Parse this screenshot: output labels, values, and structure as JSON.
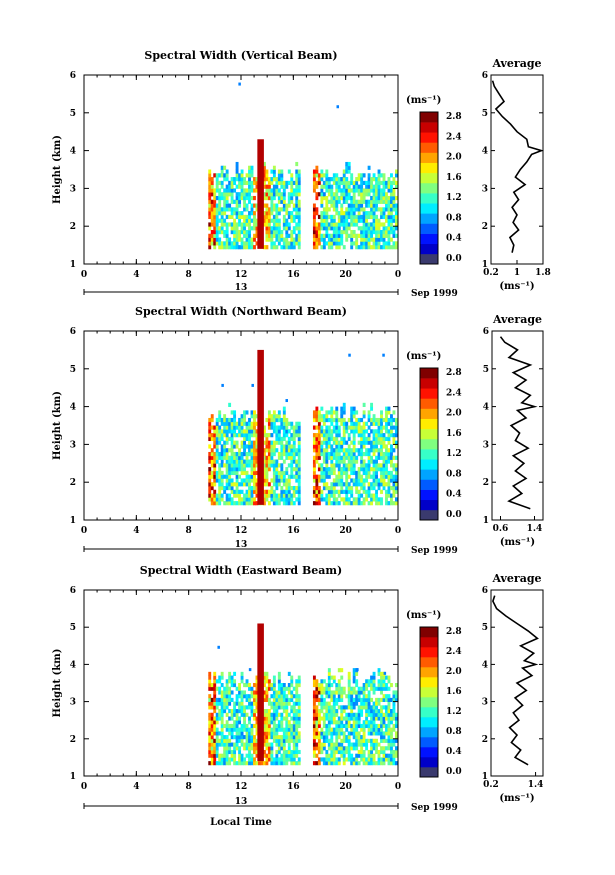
{
  "figure": {
    "date_label": "Sep 1999",
    "xlabel": "Local Time",
    "cbar_unit": "(ms⁻¹)",
    "avg_unit": "(ms⁻¹)"
  },
  "chart_data": [
    {
      "type": "heatmap",
      "title": "Spectral Width (Vertical Beam)",
      "xlabel": "",
      "ylabel": "Height (km)",
      "xlim": [
        0,
        24
      ],
      "ylim": [
        1,
        6
      ],
      "x_ticks": [
        "0",
        "4",
        "8",
        "12",
        "16",
        "20",
        "0"
      ],
      "y_ticks": [
        "1",
        "2",
        "3",
        "4",
        "5",
        "6"
      ],
      "date_axis": {
        "day": "13",
        "label": "Sep 1999"
      },
      "colorbar": {
        "unit": "(ms⁻¹)",
        "ticks": [
          "0.0",
          "0.4",
          "0.8",
          "1.2",
          "1.6",
          "2.0",
          "2.4",
          "2.8"
        ],
        "range": [
          0,
          3.0
        ]
      },
      "data_extent_hours": [
        [
          9.5,
          16.4
        ],
        [
          17.5,
          23.8
        ]
      ],
      "data_extent_km": [
        1.4,
        3.4
      ],
      "convective_core": {
        "hour": 13.5,
        "top_km": 4.3,
        "width_ms": 2.9
      },
      "scattered_points": [
        {
          "x": 11.8,
          "y": 5.8
        },
        {
          "x": 19.3,
          "y": 5.2
        }
      ],
      "average_profile": {
        "title": "Average",
        "xlabel": "(ms⁻¹)",
        "xlim": [
          0.2,
          1.8
        ],
        "x_ticks": [
          "0.2",
          "1",
          "1.8"
        ],
        "ylim": [
          1,
          6
        ],
        "y_ticks": [
          "1",
          "2",
          "3",
          "4",
          "5",
          "6"
        ],
        "height_km": [
          1.3,
          1.5,
          1.7,
          1.9,
          2.1,
          2.3,
          2.5,
          2.7,
          2.9,
          3.1,
          3.3,
          3.5,
          3.7,
          3.9,
          4.0,
          4.1,
          4.3,
          4.5,
          4.7,
          4.9,
          5.1,
          5.3,
          5.5,
          5.7,
          5.85
        ],
        "width_ms": [
          0.85,
          0.9,
          0.78,
          1.05,
          0.88,
          1.0,
          0.85,
          1.05,
          0.9,
          1.25,
          0.95,
          1.1,
          1.3,
          1.45,
          1.75,
          1.35,
          1.3,
          1.0,
          0.8,
          0.55,
          0.35,
          0.6,
          0.45,
          0.3,
          0.25
        ]
      }
    },
    {
      "type": "heatmap",
      "title": "Spectral Width (Northward Beam)",
      "xlabel": "",
      "ylabel": "Height (km)",
      "xlim": [
        0,
        24
      ],
      "ylim": [
        1,
        6
      ],
      "x_ticks": [
        "0",
        "4",
        "8",
        "12",
        "16",
        "20",
        "0"
      ],
      "y_ticks": [
        "1",
        "2",
        "3",
        "4",
        "5",
        "6"
      ],
      "date_axis": {
        "day": "13",
        "label": "Sep 1999"
      },
      "colorbar": {
        "unit": "(ms⁻¹)",
        "ticks": [
          "0.0",
          "0.4",
          "0.8",
          "1.2",
          "1.6",
          "2.0",
          "2.4",
          "2.8"
        ],
        "range": [
          0,
          3.0
        ]
      },
      "data_extent_hours": [
        [
          9.5,
          16.4
        ],
        [
          17.5,
          23.8
        ]
      ],
      "data_extent_km": [
        1.4,
        3.8
      ],
      "convective_core": {
        "hour": 13.5,
        "top_km": 5.5,
        "width_ms": 2.9
      },
      "scattered_points": [
        {
          "x": 20.2,
          "y": 5.4
        },
        {
          "x": 22.8,
          "y": 5.4
        },
        {
          "x": 10.5,
          "y": 4.6
        },
        {
          "x": 12.8,
          "y": 4.6
        },
        {
          "x": 15.4,
          "y": 4.2
        }
      ],
      "average_profile": {
        "title": "Average",
        "xlabel": "(ms⁻¹)",
        "xlim": [
          0.4,
          1.6
        ],
        "x_ticks": [
          "0.6",
          "1.4"
        ],
        "ylim": [
          1,
          6
        ],
        "y_ticks": [
          "1",
          "2",
          "3",
          "4",
          "5",
          "6"
        ],
        "height_km": [
          1.3,
          1.5,
          1.7,
          1.9,
          2.1,
          2.3,
          2.5,
          2.7,
          2.9,
          3.1,
          3.3,
          3.5,
          3.7,
          3.9,
          4.0,
          4.1,
          4.3,
          4.5,
          4.7,
          4.9,
          5.1,
          5.3,
          5.5,
          5.7,
          5.85
        ],
        "width_ms": [
          1.3,
          0.8,
          1.1,
          0.9,
          1.2,
          0.95,
          1.15,
          0.9,
          1.25,
          0.95,
          1.05,
          0.85,
          1.2,
          1.0,
          1.4,
          1.1,
          1.3,
          0.95,
          1.2,
          0.9,
          1.3,
          0.8,
          1.0,
          0.7,
          0.6
        ]
      }
    },
    {
      "type": "heatmap",
      "title": "Spectral Width (Eastward Beam)",
      "xlabel": "Local Time",
      "ylabel": "Height (km)",
      "xlim": [
        0,
        24
      ],
      "ylim": [
        1,
        6
      ],
      "x_ticks": [
        "0",
        "4",
        "8",
        "12",
        "16",
        "20",
        "0"
      ],
      "y_ticks": [
        "1",
        "2",
        "3",
        "4",
        "5",
        "6"
      ],
      "date_axis": {
        "day": "13",
        "label": "Sep 1999"
      },
      "colorbar": {
        "unit": "(ms⁻¹)",
        "ticks": [
          "0.0",
          "0.4",
          "0.8",
          "1.2",
          "1.6",
          "2.0",
          "2.4",
          "2.8"
        ],
        "range": [
          0,
          3.0
        ]
      },
      "data_extent_hours": [
        [
          9.5,
          16.4
        ],
        [
          17.5,
          23.8
        ]
      ],
      "data_extent_km": [
        1.3,
        3.6
      ],
      "convective_core": {
        "hour": 13.5,
        "top_km": 5.1,
        "width_ms": 2.9
      },
      "scattered_points": [
        {
          "x": 10.2,
          "y": 4.5
        },
        {
          "x": 20.8,
          "y": 3.9
        },
        {
          "x": 22.9,
          "y": 3.8
        },
        {
          "x": 12.6,
          "y": 3.9
        }
      ],
      "average_profile": {
        "title": "Average",
        "xlabel": "(ms⁻¹)",
        "xlim": [
          0.2,
          1.6
        ],
        "x_ticks": [
          "0.2",
          "1.4"
        ],
        "ylim": [
          1,
          6
        ],
        "y_ticks": [
          "1",
          "2",
          "3",
          "4",
          "5",
          "6"
        ],
        "height_km": [
          1.3,
          1.5,
          1.7,
          1.9,
          2.1,
          2.3,
          2.5,
          2.7,
          2.9,
          3.1,
          3.3,
          3.5,
          3.7,
          3.9,
          4.0,
          4.1,
          4.3,
          4.5,
          4.7,
          4.9,
          5.1,
          5.3,
          5.5,
          5.7,
          5.85
        ],
        "width_ms": [
          1.2,
          0.85,
          1.0,
          0.75,
          0.9,
          0.7,
          0.95,
          0.8,
          1.05,
          0.85,
          1.15,
          0.9,
          1.3,
          1.05,
          1.4,
          1.1,
          1.35,
          1.0,
          1.45,
          1.2,
          0.9,
          0.6,
          0.35,
          0.25,
          0.3
        ]
      }
    }
  ]
}
